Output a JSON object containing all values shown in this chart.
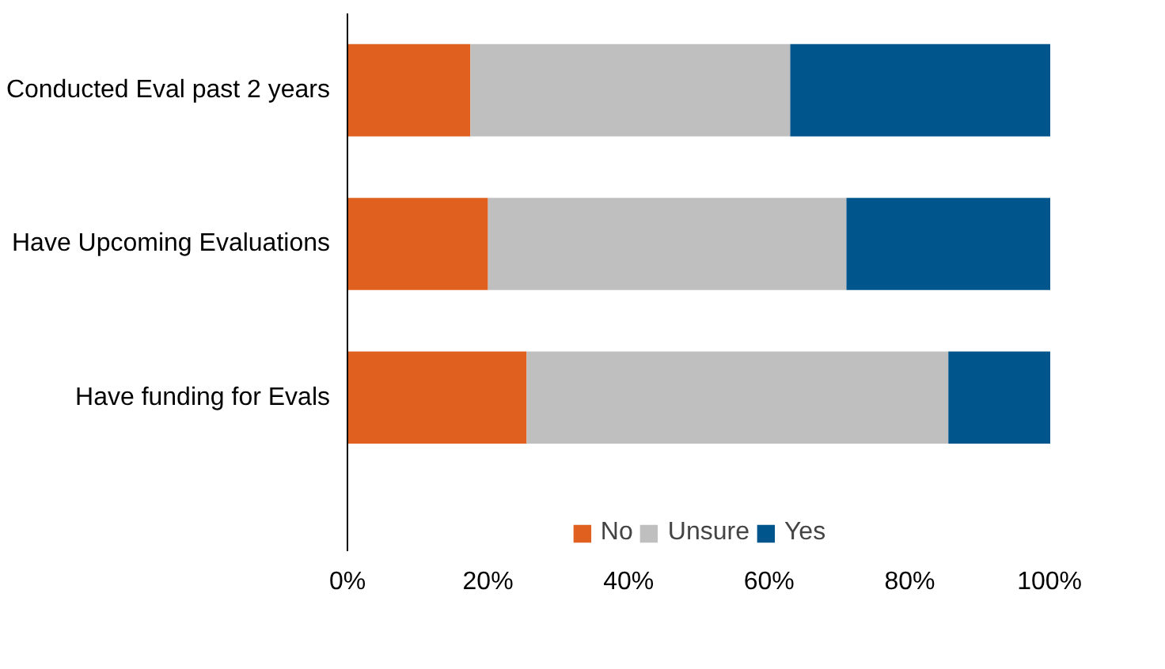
{
  "chart_data": {
    "type": "bar",
    "orientation": "horizontal",
    "stacked": true,
    "categories": [
      "Conducted Eval past 2 years",
      "Have Upcoming Evaluations",
      "Have funding for Evals"
    ],
    "series": [
      {
        "name": "No",
        "color": "#e06020",
        "values": [
          17.5,
          20,
          25.5
        ]
      },
      {
        "name": "Unsure",
        "color": "#bfbfbf",
        "values": [
          45.5,
          51,
          60
        ]
      },
      {
        "name": "Yes",
        "color": "#00558c",
        "values": [
          37,
          29,
          14.5
        ]
      }
    ],
    "xlim": [
      0,
      100
    ],
    "xticks": [
      {
        "value": 0,
        "label": "0%"
      },
      {
        "value": 20,
        "label": "20%"
      },
      {
        "value": 40,
        "label": "40%"
      },
      {
        "value": 60,
        "label": "60%"
      },
      {
        "value": 80,
        "label": "80%"
      },
      {
        "value": 100,
        "label": "100%"
      }
    ],
    "grid": false,
    "legend": "bottom"
  }
}
